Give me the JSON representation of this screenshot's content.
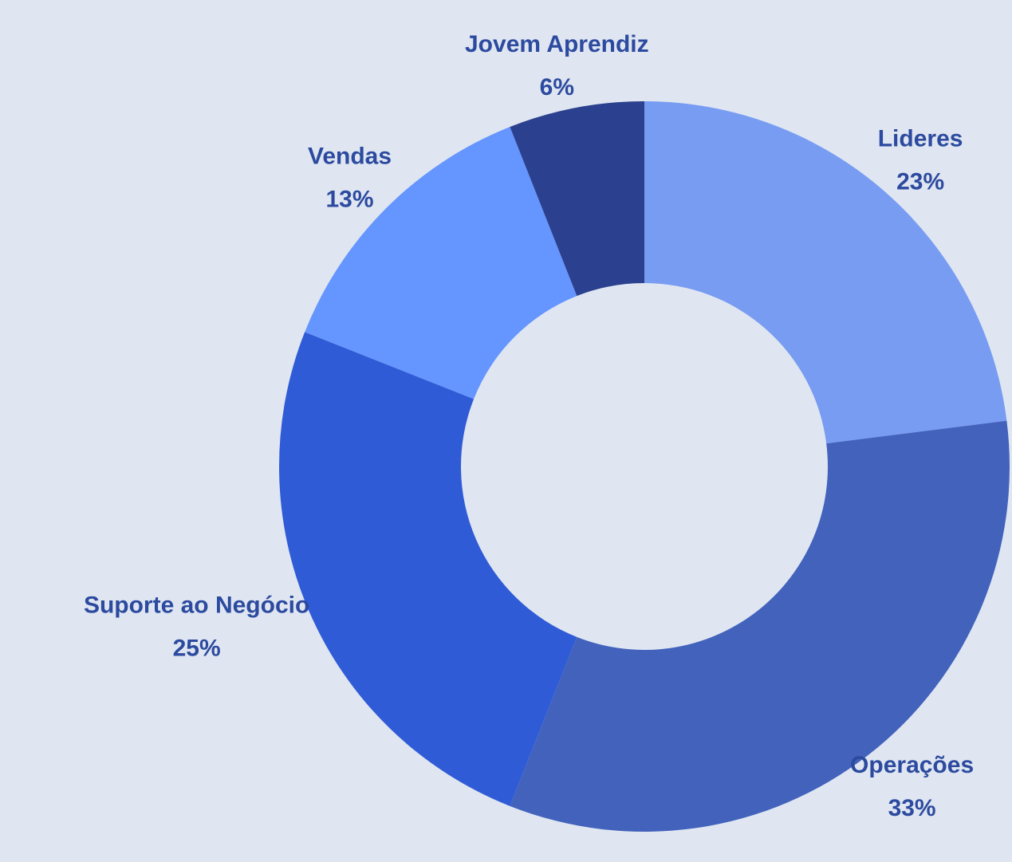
{
  "chart_data": {
    "type": "donut",
    "categories": [
      "Lideres",
      "Operações",
      "Suporte ao Negócio",
      "Vendas",
      "Jovem Aprendiz"
    ],
    "values": [
      23,
      33,
      25,
      13,
      6
    ],
    "value_labels": [
      "23%",
      "33%",
      "25%",
      "13%",
      "6%"
    ],
    "colors": [
      "#789cf2",
      "#4262bc",
      "#305bd6",
      "#6595fe",
      "#2b418f"
    ]
  }
}
